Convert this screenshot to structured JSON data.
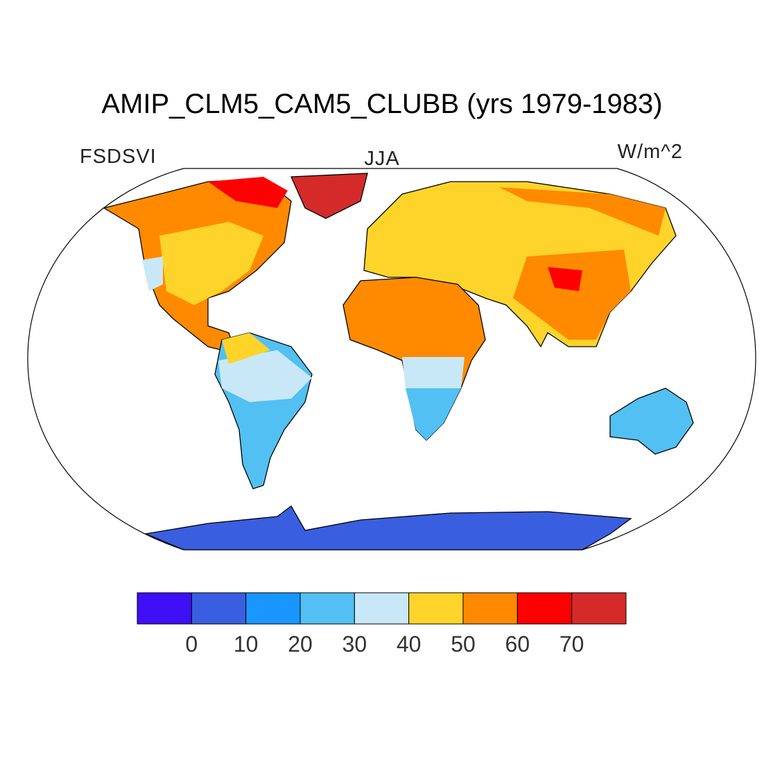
{
  "title": "AMIP_CLM5_CAM5_CLUBB (yrs 1979-1983)",
  "left_label": "FSDSVI",
  "center_label": "JJA",
  "right_label": "W/m^2",
  "colorbar": {
    "colors": [
      "#3f0ff5",
      "#3a5ee0",
      "#1996ff",
      "#52c0f2",
      "#c8e8f7",
      "#ffd42a",
      "#ff8a00",
      "#ff0000",
      "#d42a2a"
    ],
    "ticks": [
      0,
      10,
      20,
      30,
      40,
      50,
      60,
      70
    ]
  }
}
